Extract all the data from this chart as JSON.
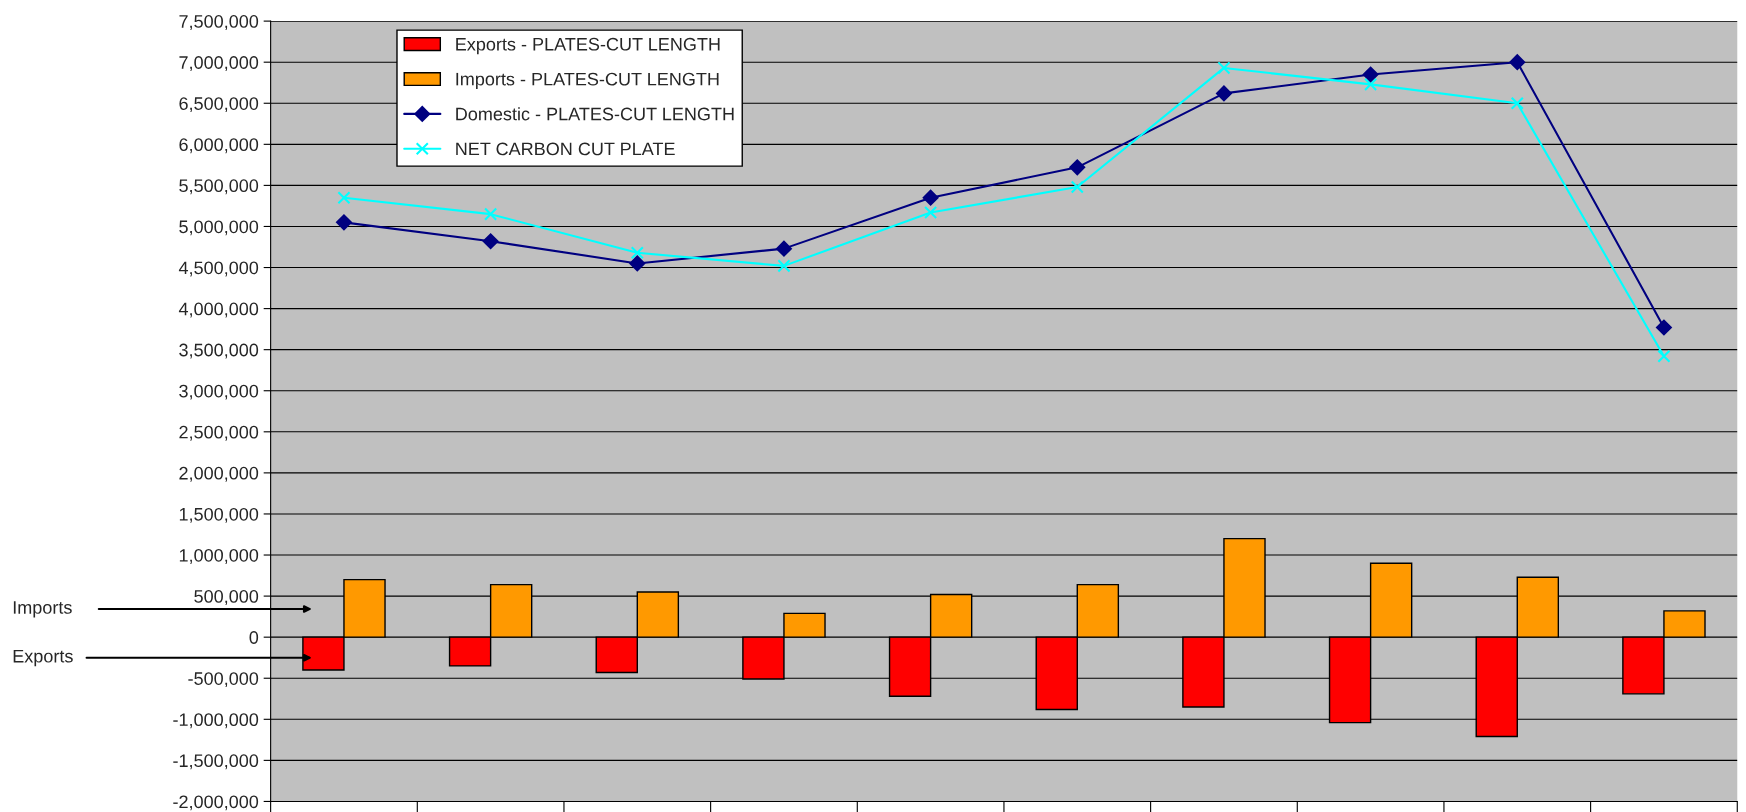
{
  "chart_data": {
    "type": "bar",
    "categories": [
      null,
      null,
      null,
      null,
      null,
      null,
      null,
      null,
      null,
      null
    ],
    "series": [
      {
        "name": "Exports - PLATES-CUT LENGTH",
        "color": "#ff0000",
        "values": [
          -400000,
          -350000,
          -430000,
          -510000,
          -720000,
          -880000,
          -850000,
          -1040000,
          -1210000,
          -690000
        ]
      },
      {
        "name": "Imports - PLATES-CUT LENGTH",
        "color": "#ff9900",
        "values": [
          700000,
          640000,
          550000,
          290000,
          520000,
          640000,
          1200000,
          900000,
          730000,
          320000
        ]
      },
      {
        "name": "Domestic - PLATES-CUT LENGTH",
        "type": "line",
        "color": "#000080",
        "marker": "diamond",
        "values": [
          5050000,
          4820000,
          4550000,
          4730000,
          5350000,
          5720000,
          6620000,
          6850000,
          7000000,
          3770000
        ]
      },
      {
        "name": "NET CARBON CUT PLATE",
        "type": "line",
        "color": "#00ffff",
        "marker": "cross",
        "values": [
          5350000,
          5150000,
          4680000,
          4520000,
          5170000,
          5480000,
          6930000,
          6730000,
          6500000,
          3420000
        ]
      }
    ],
    "ylim": [
      -2000000,
      7500000
    ],
    "yticks": [
      {
        "value": -2000000,
        "label": "-2,000,000"
      },
      {
        "value": -1500000,
        "label": "-1,500,000"
      },
      {
        "value": -1000000,
        "label": "-1,000,000"
      },
      {
        "value": -500000,
        "label": "-500,000"
      },
      {
        "value": 0,
        "label": "0"
      },
      {
        "value": 500000,
        "label": "500,000"
      },
      {
        "value": 1000000,
        "label": "1,000,000"
      },
      {
        "value": 1500000,
        "label": "1,500,000"
      },
      {
        "value": 2000000,
        "label": "2,000,000"
      },
      {
        "value": 2500000,
        "label": "2,500,000"
      },
      {
        "value": 3000000,
        "label": "3,000,000"
      },
      {
        "value": 3500000,
        "label": "3,500,000"
      },
      {
        "value": 4000000,
        "label": "4,000,000"
      },
      {
        "value": 4500000,
        "label": "4,500,000"
      },
      {
        "value": 5000000,
        "label": "5,000,000"
      },
      {
        "value": 5500000,
        "label": "5,500,000"
      },
      {
        "value": 6000000,
        "label": "6,000,000"
      },
      {
        "value": 6500000,
        "label": "6,500,000"
      },
      {
        "value": 7000000,
        "label": "7,000,000"
      },
      {
        "value": 7500000,
        "label": "7,500,000"
      }
    ],
    "grid": "y",
    "legend": "top left",
    "annotations": [
      "Imports",
      "Exports"
    ]
  }
}
